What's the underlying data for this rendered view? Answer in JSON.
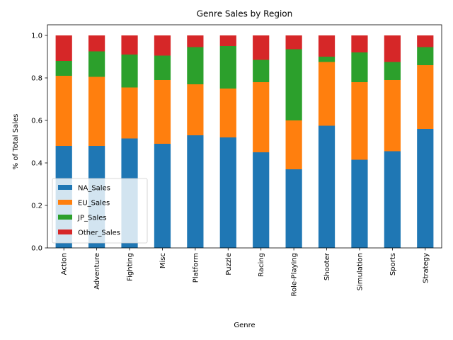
{
  "chart_data": {
    "type": "bar",
    "stacked": true,
    "title": "Genre Sales by Region",
    "xlabel": "Genre",
    "ylabel": "% of Total Sales",
    "ylim": [
      0,
      1.0
    ],
    "yticks": [
      "0.0",
      "0.2",
      "0.4",
      "0.6",
      "0.8",
      "1.0"
    ],
    "categories": [
      "Action",
      "Adventure",
      "Fighting",
      "Misc",
      "Platform",
      "Puzzle",
      "Racing",
      "Role-Playing",
      "Shooter",
      "Simulation",
      "Sports",
      "Strategy"
    ],
    "series": [
      {
        "name": "NA_Sales",
        "color": "#1f77b4",
        "values": [
          0.48,
          0.48,
          0.515,
          0.49,
          0.53,
          0.52,
          0.45,
          0.37,
          0.575,
          0.415,
          0.455,
          0.56
        ]
      },
      {
        "name": "EU_Sales",
        "color": "#ff7f0e",
        "values": [
          0.33,
          0.325,
          0.24,
          0.3,
          0.24,
          0.23,
          0.33,
          0.23,
          0.3,
          0.365,
          0.335,
          0.3
        ]
      },
      {
        "name": "JP_Sales",
        "color": "#2ca02c",
        "values": [
          0.07,
          0.12,
          0.155,
          0.115,
          0.175,
          0.2,
          0.105,
          0.335,
          0.025,
          0.14,
          0.085,
          0.085
        ]
      },
      {
        "name": "Other_Sales",
        "color": "#d62728",
        "values": [
          0.12,
          0.075,
          0.09,
          0.095,
          0.055,
          0.05,
          0.115,
          0.065,
          0.1,
          0.08,
          0.125,
          0.055
        ]
      }
    ],
    "legend_position": "lower-left",
    "grid": false
  }
}
